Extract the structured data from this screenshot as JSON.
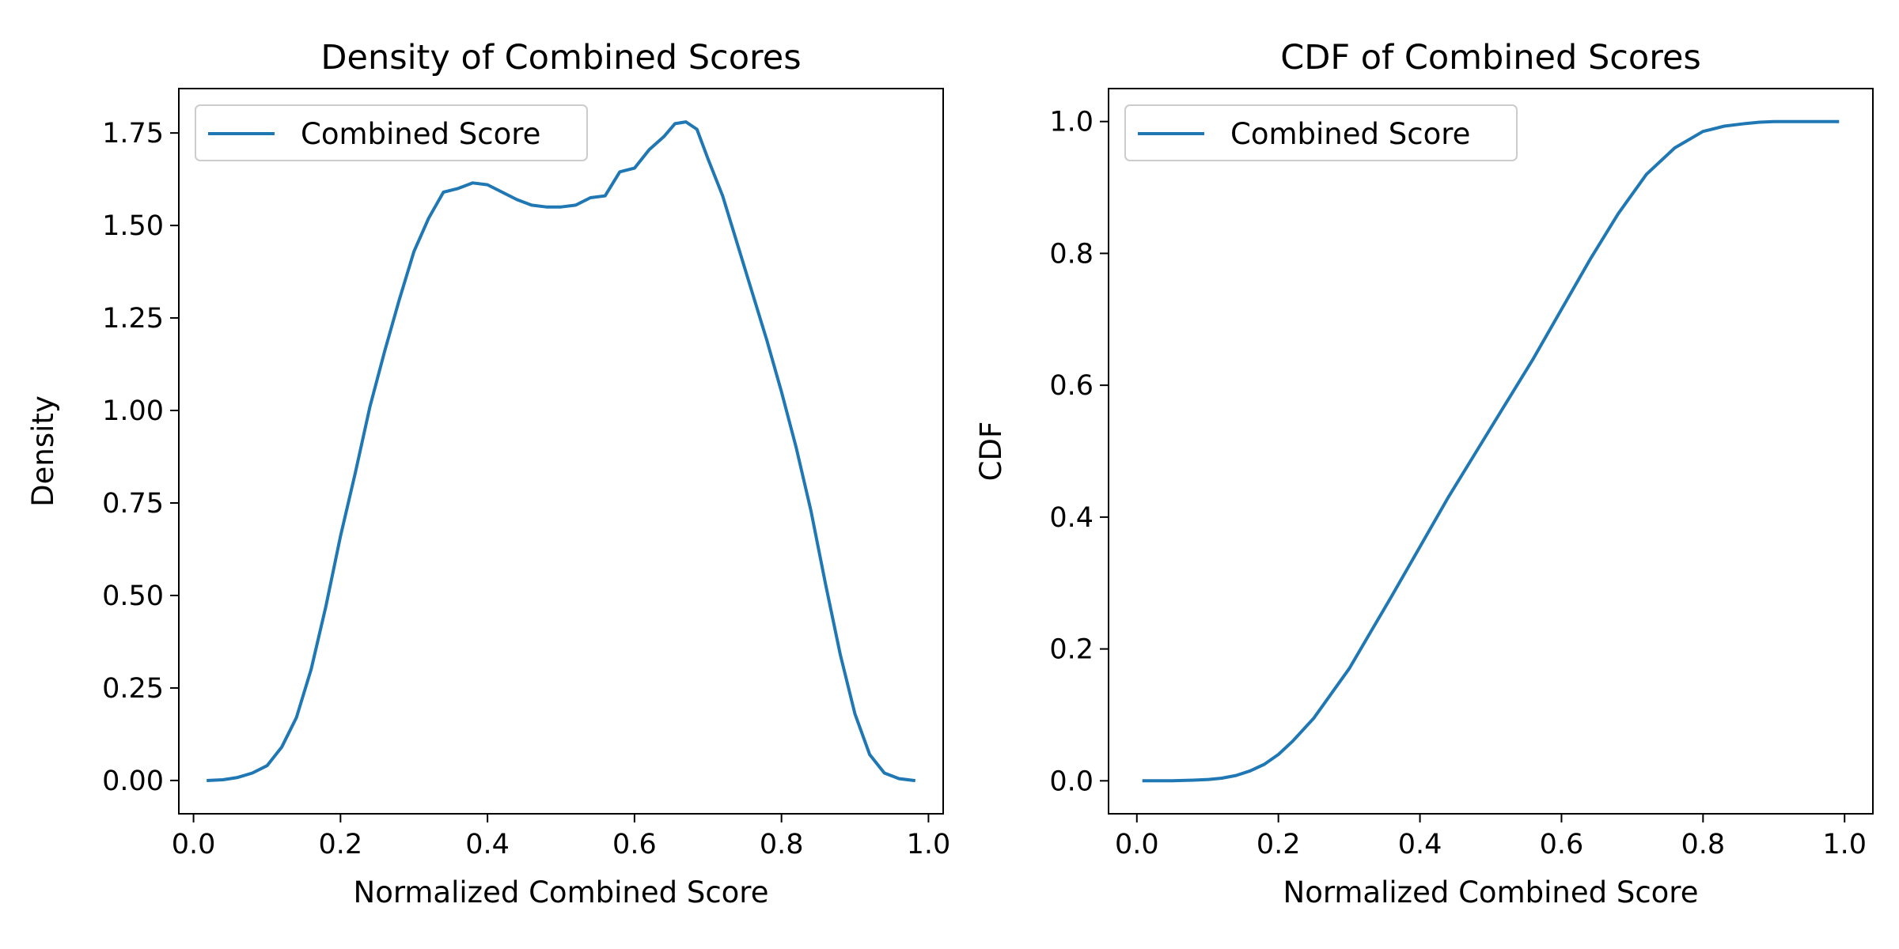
{
  "chart_data": [
    {
      "type": "line",
      "title": "Density of Combined Scores",
      "xlabel": "Normalized Combined Score",
      "ylabel": "Density",
      "xlim": [
        -0.02,
        1.02
      ],
      "ylim": [
        -0.09,
        1.87
      ],
      "xticks": [
        0.0,
        0.2,
        0.4,
        0.6,
        0.8,
        1.0
      ],
      "xtick_labels": [
        "0.0",
        "0.2",
        "0.4",
        "0.6",
        "0.8",
        "1.0"
      ],
      "yticks": [
        0.0,
        0.25,
        0.5,
        0.75,
        1.0,
        1.25,
        1.5,
        1.75
      ],
      "ytick_labels": [
        "0.00",
        "0.25",
        "0.50",
        "0.75",
        "1.00",
        "1.25",
        "1.50",
        "1.75"
      ],
      "grid": false,
      "legend": "upper left",
      "series": [
        {
          "name": "Combined Score",
          "color": "#1f77b4",
          "x": [
            0.02,
            0.04,
            0.06,
            0.08,
            0.1,
            0.12,
            0.14,
            0.16,
            0.18,
            0.2,
            0.22,
            0.24,
            0.26,
            0.28,
            0.3,
            0.32,
            0.34,
            0.36,
            0.38,
            0.4,
            0.42,
            0.44,
            0.46,
            0.48,
            0.5,
            0.52,
            0.54,
            0.56,
            0.58,
            0.6,
            0.62,
            0.64,
            0.655,
            0.67,
            0.685,
            0.7,
            0.72,
            0.74,
            0.76,
            0.78,
            0.8,
            0.82,
            0.84,
            0.86,
            0.88,
            0.9,
            0.92,
            0.94,
            0.96,
            0.98
          ],
          "y": [
            0.0,
            0.002,
            0.008,
            0.02,
            0.04,
            0.09,
            0.17,
            0.3,
            0.47,
            0.66,
            0.83,
            1.01,
            1.16,
            1.3,
            1.43,
            1.52,
            1.59,
            1.6,
            1.615,
            1.61,
            1.59,
            1.57,
            1.555,
            1.55,
            1.55,
            1.555,
            1.575,
            1.58,
            1.645,
            1.655,
            1.705,
            1.74,
            1.775,
            1.78,
            1.76,
            1.68,
            1.58,
            1.45,
            1.32,
            1.19,
            1.05,
            0.9,
            0.73,
            0.53,
            0.34,
            0.18,
            0.07,
            0.02,
            0.005,
            0.0
          ]
        }
      ]
    },
    {
      "type": "line",
      "title": "CDF of Combined Scores",
      "xlabel": "Normalized Combined Score",
      "ylabel": "CDF",
      "xlim": [
        -0.04,
        1.04
      ],
      "ylim": [
        -0.05,
        1.05
      ],
      "xticks": [
        0.0,
        0.2,
        0.4,
        0.6,
        0.8,
        1.0
      ],
      "xtick_labels": [
        "0.0",
        "0.2",
        "0.4",
        "0.6",
        "0.8",
        "1.0"
      ],
      "yticks": [
        0.0,
        0.2,
        0.4,
        0.6,
        0.8,
        1.0
      ],
      "ytick_labels": [
        "0.0",
        "0.2",
        "0.4",
        "0.6",
        "0.8",
        "1.0"
      ],
      "grid": false,
      "legend": "upper left",
      "series": [
        {
          "name": "Combined Score",
          "color": "#1f77b4",
          "x": [
            0.01,
            0.05,
            0.08,
            0.1,
            0.12,
            0.14,
            0.16,
            0.18,
            0.2,
            0.22,
            0.25,
            0.28,
            0.3,
            0.33,
            0.36,
            0.4,
            0.44,
            0.48,
            0.52,
            0.56,
            0.6,
            0.64,
            0.68,
            0.72,
            0.76,
            0.8,
            0.83,
            0.86,
            0.88,
            0.9,
            0.92,
            0.95,
            0.99
          ],
          "y": [
            0.0,
            0.0,
            0.001,
            0.002,
            0.004,
            0.008,
            0.015,
            0.025,
            0.04,
            0.06,
            0.095,
            0.14,
            0.17,
            0.225,
            0.28,
            0.355,
            0.43,
            0.5,
            0.57,
            0.64,
            0.715,
            0.79,
            0.86,
            0.92,
            0.96,
            0.985,
            0.993,
            0.997,
            0.999,
            1.0,
            1.0,
            1.0,
            1.0
          ]
        }
      ]
    }
  ]
}
